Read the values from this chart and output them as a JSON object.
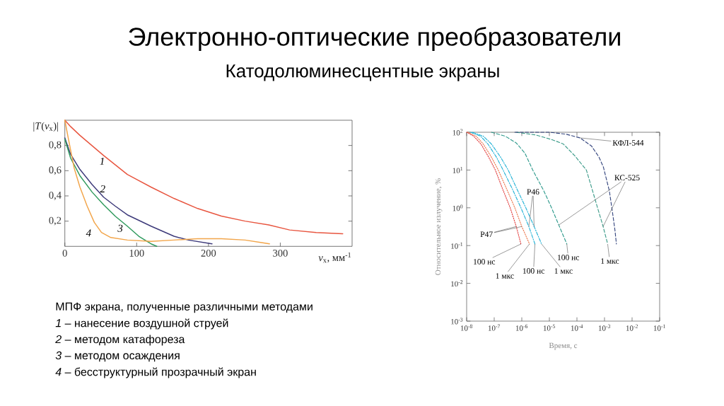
{
  "chart_data": [
    {
      "type": "line",
      "title": "Электронно-оптические преобразователи",
      "subtitle": "Катодолюминесцентные экраны",
      "xlabel": "*ν*$_{x}$, мм$^{-1}$",
      "ylabel": "|*T*(*ν*$_{x}$)|",
      "xlim": [
        0,
        400
      ],
      "ylim": [
        0,
        1
      ],
      "xticks": [
        0,
        100,
        200,
        300
      ],
      "yticks": [
        {
          "value": 0.2,
          "label": "0,2"
        },
        {
          "value": 0.4,
          "label": "0,4"
        },
        {
          "value": 0.6,
          "label": "0,6"
        },
        {
          "value": 0.8,
          "label": "0,8"
        }
      ],
      "series": [
        {
          "name": "1",
          "color": "#e8553f",
          "x": [
            0,
            8,
            21,
            54,
            87,
            120,
            152,
            185,
            218,
            251,
            284,
            313,
            350,
            387
          ],
          "values": [
            1.0,
            0.95,
            0.88,
            0.72,
            0.57,
            0.47,
            0.38,
            0.3,
            0.24,
            0.2,
            0.17,
            0.13,
            0.11,
            0.1
          ]
        },
        {
          "name": "2",
          "color": "#3d3a7a",
          "x": [
            0,
            8,
            21,
            38,
            54,
            70,
            87,
            120,
            152,
            172,
            205
          ],
          "values": [
            0.86,
            0.73,
            0.61,
            0.49,
            0.39,
            0.32,
            0.25,
            0.16,
            0.08,
            0.05,
            0.02
          ]
        },
        {
          "name": "3",
          "color": "#2f9a5c",
          "x": [
            0,
            8,
            21,
            38,
            54,
            70,
            87,
            103,
            120,
            128
          ],
          "values": [
            0.85,
            0.7,
            0.56,
            0.43,
            0.33,
            0.24,
            0.16,
            0.08,
            0.02,
            0.0
          ]
        },
        {
          "name": "4",
          "color": "#f2a54a",
          "x": [
            0,
            5,
            13,
            21,
            31,
            41,
            51,
            64,
            87,
            120,
            152,
            185,
            218,
            251,
            274,
            285
          ],
          "values": [
            1.0,
            0.85,
            0.62,
            0.47,
            0.32,
            0.19,
            0.11,
            0.07,
            0.05,
            0.04,
            0.05,
            0.06,
            0.06,
            0.05,
            0.03,
            0.02
          ]
        }
      ],
      "annotations": [
        "МПФ экрана, полученные различными методами",
        "*1* – нанесение воздушной струей",
        "*2* – методом катафореза",
        "*3* – методом осаждения",
        "*4* – бесструктурный прозрачный экран"
      ]
    },
    {
      "type": "line",
      "xlabel": "Время, с",
      "ylabel": "Относительное излучение, %",
      "log": "xy",
      "xlim": [
        1e-08,
        0.1
      ],
      "ylim": [
        0.001,
        100
      ],
      "xticks": [
        {
          "value": 1e-08,
          "label": "10$^{-8}$"
        },
        {
          "value": 1e-07,
          "label": "10$^{-7}$"
        },
        {
          "value": 1e-06,
          "label": "10$^{-6}$"
        },
        {
          "value": 1e-05,
          "label": "10$^{-5}$"
        },
        {
          "value": 0.0001,
          "label": "10$^{-4}$"
        },
        {
          "value": 0.001,
          "label": "10$^{-3}$"
        },
        {
          "value": 0.01,
          "label": "10$^{-2}$"
        },
        {
          "value": 0.1,
          "label": "10$^{-1}$"
        }
      ],
      "yticks": [
        {
          "value": 0.001,
          "label": "10$^{-3}$"
        },
        {
          "value": 0.01,
          "label": "10$^{-2}$"
        },
        {
          "value": 0.1,
          "label": "10$^{-1}$"
        },
        {
          "value": 1,
          "label": "10$^{0}$"
        },
        {
          "value": 10,
          "label": "10$^{1}$"
        },
        {
          "value": 100,
          "label": "10$^{2}$"
        }
      ],
      "series": [
        {
          "color": "#e23a3a",
          "line_style": "dotted",
          "x": [
            1e-08,
            1.8e-08,
            3.3e-08,
            6.3e-08,
            1.1e-07,
            2e-07,
            3.8e-07,
            6.3e-07,
            9.3e-07
          ],
          "values": [
            100,
            79,
            49,
            22,
            10,
            3.2,
            1.0,
            0.32,
            0.11
          ]
        },
        {
          "color": "#ec7a50",
          "line_style": "dotted",
          "x": [
            1.1e-08,
            2.2e-08,
            4e-08,
            7.9e-08,
            1.4e-07,
            2.8e-07,
            5.6e-07,
            1e-06,
            1.9e-06
          ],
          "values": [
            100,
            79,
            49,
            22,
            10,
            3.2,
            1.0,
            0.32,
            0.11
          ]
        },
        {
          "color": "#22b2d6",
          "line_style": "dashdot",
          "x": [
            1.4e-08,
            3.2e-08,
            5.9e-08,
            1.2e-07,
            2.1e-07,
            4.5e-07,
            9.3e-07,
            1.8e-06,
            3e-06
          ],
          "values": [
            100,
            79,
            49,
            22,
            10,
            3.2,
            1.0,
            0.32,
            0.11
          ]
        },
        {
          "color": "#22b2d6",
          "line_style": "dashdot",
          "x": [
            1.6e-08,
            4e-08,
            7.9e-08,
            1.7e-07,
            3.2e-07,
            6.6e-07,
            1.4e-06,
            2.8e-06,
            5.2e-06
          ],
          "values": [
            100,
            79,
            49,
            22,
            10,
            3.2,
            1.0,
            0.32,
            0.11
          ]
        },
        {
          "color": "#2e9a8c",
          "line_style": "dashed",
          "x": [
            7.9e-08,
            2.5e-07,
            6.3e-07,
            1.3e-06,
            2.5e-06,
            6.3e-06,
            1.2e-05,
            2.2e-05,
            4.3e-05
          ],
          "values": [
            100,
            79,
            52,
            28,
            10,
            2.8,
            1.0,
            0.35,
            0.11
          ]
        },
        {
          "color": "#3a9a88",
          "line_style": "dashed",
          "x": [
            6.3e-07,
            3.2e-06,
            1.3e-05,
            3.2e-05,
            8.3e-05,
            0.00022,
            0.00035,
            0.00056,
            0.00089,
            0.0013
          ],
          "values": [
            100,
            85,
            63,
            49,
            24,
            10,
            3.2,
            1.0,
            0.32,
            0.11
          ]
        },
        {
          "color": "#34457e",
          "line_style": "dashed",
          "x": [
            5.6e-07,
            1e-05,
            4e-05,
            0.00013,
            0.00034,
            0.00063,
            0.00091,
            0.0015,
            0.002,
            0.0024,
            0.0027
          ],
          "values": [
            100,
            100,
            89,
            71,
            43,
            22,
            12,
            2.8,
            0.66,
            0.25,
            0.11
          ]
        }
      ],
      "annotations": [
        {
          "text": "КФЛ-544",
          "x": 0.00013,
          "y": 71
        },
        {
          "text": "КС-525",
          "x": 0.00089,
          "y": 0.32
        },
        {
          "text": "P46",
          "x": 1.8e-06,
          "y": 0.32
        },
        {
          "text": "P47",
          "x": 6.3e-07,
          "y": 0.32
        },
        {
          "text": "100 нс",
          "x": 9.3e-07,
          "y": 0.11
        },
        {
          "text": "1 мкс",
          "x": 1.9e-06,
          "y": 0.11
        },
        {
          "text": "100 нс",
          "x": 3e-06,
          "y": 0.11
        },
        {
          "text": "1 мкс",
          "x": 5.2e-06,
          "y": 0.11
        },
        {
          "text": "100 нс",
          "x": 4.3e-05,
          "y": 0.11
        },
        {
          "text": "1 мкс",
          "x": 0.0013,
          "y": 0.11
        }
      ]
    }
  ]
}
